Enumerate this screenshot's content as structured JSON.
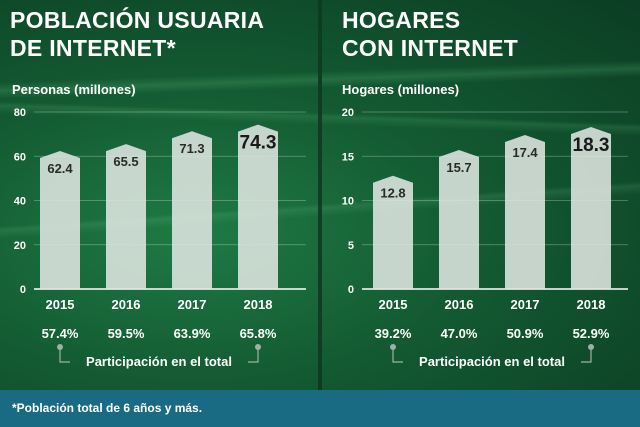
{
  "footnote": "*Población total de 6 años y más.",
  "chart_data": [
    {
      "type": "bar",
      "title": "POBLACIÓN USUARIA DE INTERNET*",
      "title_lines": [
        "POBLACIÓN USUARIA",
        "DE INTERNET*"
      ],
      "ylabel": "Personas (millones)",
      "ylim": [
        0,
        80
      ],
      "yticks": [
        0,
        20,
        40,
        60,
        80
      ],
      "categories": [
        "2015",
        "2016",
        "2017",
        "2018"
      ],
      "values": [
        62.4,
        65.5,
        71.3,
        74.3
      ],
      "value_labels": [
        "62.4",
        "65.5",
        "71.3",
        "74.3"
      ],
      "percentages": [
        "57.4%",
        "59.5%",
        "63.9%",
        "65.8%"
      ],
      "percent_caption": "Participación en el total",
      "grid": true
    },
    {
      "type": "bar",
      "title": "HOGARES CON INTERNET",
      "title_lines": [
        "HOGARES",
        "CON INTERNET"
      ],
      "ylabel": "Hogares (millones)",
      "ylim": [
        0,
        20
      ],
      "yticks": [
        0,
        5,
        10,
        15,
        20
      ],
      "categories": [
        "2015",
        "2016",
        "2017",
        "2018"
      ],
      "values": [
        12.8,
        15.7,
        17.4,
        18.3
      ],
      "value_labels": [
        "12.8",
        "15.7",
        "17.4",
        "18.3"
      ],
      "percentages": [
        "39.2%",
        "47.0%",
        "50.9%",
        "52.9%"
      ],
      "percent_caption": "Participación en el total",
      "grid": true
    }
  ]
}
